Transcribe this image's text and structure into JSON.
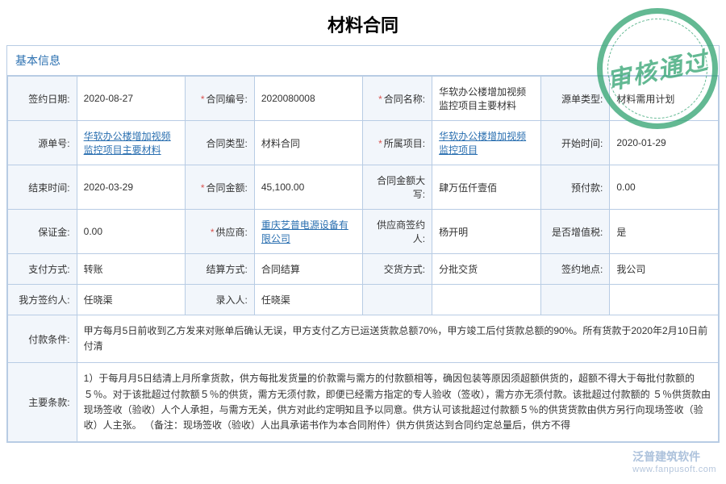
{
  "page": {
    "title": "材料合同",
    "section_basic": "基本信息"
  },
  "stamp": {
    "text": "审核通过"
  },
  "watermark": {
    "brand": "泛普建筑软件",
    "url": "www.fanpusoft.com"
  },
  "fields": {
    "sign_date": {
      "label": "签约日期:",
      "value": "2020-08-27",
      "required": false
    },
    "contract_no": {
      "label": "合同编号:",
      "value": "2020080008",
      "required": true
    },
    "contract_name": {
      "label": "合同名称:",
      "value": "华软办公楼增加视频监控项目主要材料",
      "required": true
    },
    "src_type": {
      "label": "源单类型:",
      "value": "材料需用计划",
      "required": false
    },
    "src_no": {
      "label": "源单号:",
      "value": "华软办公楼增加视频监控项目主要材料",
      "link": true,
      "required": false
    },
    "contract_type": {
      "label": "合同类型:",
      "value": "材料合同",
      "required": false
    },
    "project": {
      "label": "所属项目:",
      "value": "华软办公楼增加视频监控项目",
      "link": true,
      "required": true
    },
    "start": {
      "label": "开始时间:",
      "value": "2020-01-29",
      "required": false
    },
    "end": {
      "label": "结束时间:",
      "value": "2020-03-29",
      "required": false
    },
    "amount": {
      "label": "合同金额:",
      "value": "45,100.00",
      "required": true
    },
    "amount_cn": {
      "label": "合同金额大写:",
      "value": "肆万伍仟壹佰",
      "required": false
    },
    "prepay": {
      "label": "预付款:",
      "value": "0.00",
      "required": false
    },
    "deposit": {
      "label": "保证金:",
      "value": "0.00",
      "required": false
    },
    "supplier": {
      "label": "供应商:",
      "value": "重庆艺普电源设备有限公司",
      "link": true,
      "required": true
    },
    "supplier_signer": {
      "label": "供应商签约人:",
      "value": "杨开明",
      "required": false
    },
    "vat": {
      "label": "是否增值税:",
      "value": "是",
      "required": false
    },
    "pay_method": {
      "label": "支付方式:",
      "value": "转账",
      "required": false
    },
    "settle": {
      "label": "结算方式:",
      "value": "合同结算",
      "required": false
    },
    "delivery": {
      "label": "交货方式:",
      "value": "分批交货",
      "required": false
    },
    "sign_place": {
      "label": "签约地点:",
      "value": "我公司",
      "required": false
    },
    "our_signer": {
      "label": "我方签约人:",
      "value": "任晓渠",
      "required": false
    },
    "entry": {
      "label": "录入人:",
      "value": "任晓渠",
      "required": false
    },
    "pay_terms": {
      "label": "付款条件:",
      "value": "甲方每月5日前收到乙方发来对账单后确认无误，甲方支付乙方已运送货款总额70%，甲方竣工后付货款总额的90%。所有货款于2020年2月10日前付清"
    },
    "main_terms": {
      "label": "主要条款:",
      "value": "1）于每月月5日结清上月所拿货款，供方每批发货量的价款需与需方的付款额相等，确因包装等原因须超额供货的，超额不得大于每批付款额的５％。对于该批超过付款额５％的供货，需方无须付款，即便已经需方指定的专人验收（签收），需方亦无须付款。该批超过付款额的  ５％供货款由现场签收（验收）人个人承担，与需方无关，供方对此约定明知且予以同意。供方认可该批超过付款额５％的供货货款由供方另行向现场签收（验收）人主张。  （备注：现场签收（验收）人出具承诺书作为本合同附件）供方供货达到合同约定总量后，供方不得"
    }
  },
  "style": {
    "border_color": "#b8cce4",
    "label_bg": "#f2f6fb",
    "link_color": "#2a6fb0",
    "stamp_color": "#2fa26f",
    "required_color": "#d9534f"
  }
}
